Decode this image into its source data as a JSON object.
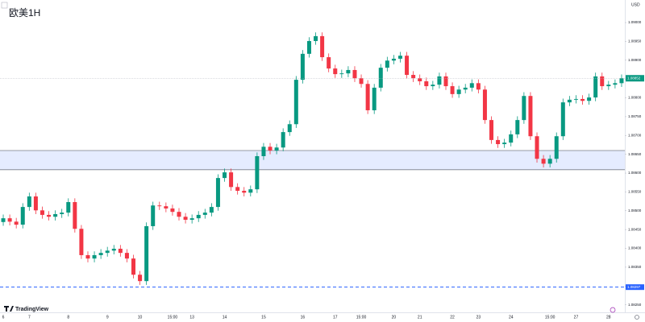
{
  "chart_data": {
    "type": "candlestick",
    "title": "欧美1H",
    "currency": "USD",
    "brand": "TradingView",
    "up_color": "#089981",
    "down_color": "#f23645",
    "categories": [
      "6",
      null,
      null,
      null,
      "7",
      null,
      null,
      null,
      null,
      null,
      "8",
      null,
      null,
      null,
      null,
      null,
      "9",
      null,
      null,
      null,
      null,
      "10",
      null,
      null,
      null,
      null,
      "15:00",
      null,
      null,
      "13",
      null,
      null,
      null,
      null,
      "14",
      null,
      null,
      null,
      null,
      null,
      "15",
      null,
      null,
      null,
      null,
      null,
      "16",
      null,
      null,
      null,
      null,
      "17",
      null,
      null,
      null,
      "15:00",
      null,
      null,
      null,
      null,
      "20",
      null,
      null,
      null,
      "21",
      null,
      null,
      null,
      null,
      "22",
      null,
      null,
      null,
      "23",
      null,
      null,
      null,
      null,
      "24",
      null,
      null,
      null,
      null,
      null,
      "15:00",
      null,
      null,
      null,
      "27",
      null,
      null,
      null,
      null,
      "28",
      null,
      null
    ],
    "open": [
      1.0847,
      1.0848,
      1.08471,
      1.08463,
      1.0851,
      1.08538,
      1.08501,
      1.08489,
      1.08484,
      1.08491,
      1.08495,
      1.08523,
      1.08452,
      1.08382,
      1.08373,
      1.08382,
      1.08388,
      1.08394,
      1.08399,
      1.08388,
      1.08373,
      1.0833,
      1.08313,
      1.08459,
      1.08514,
      1.08512,
      1.08506,
      1.08497,
      1.08484,
      1.08476,
      1.0848,
      1.08489,
      1.08495,
      1.0851,
      1.08587,
      1.08602,
      1.08563,
      1.08553,
      1.08548,
      1.08557,
      1.08645,
      1.0867,
      1.0866,
      1.08668,
      1.08709,
      1.0873,
      1.08848,
      1.08917,
      1.08951,
      1.08964,
      1.08908,
      1.08878,
      1.08863,
      1.08865,
      1.08874,
      1.08852,
      1.08837,
      1.08767,
      1.08827,
      1.0888,
      1.08899,
      1.08904,
      1.08912,
      1.08861,
      1.08852,
      1.08844,
      1.08831,
      1.08835,
      1.08857,
      1.08831,
      1.0881,
      1.08822,
      1.08827,
      1.08839,
      1.08822,
      1.08741,
      1.08688,
      1.08677,
      1.08681,
      1.08703,
      1.08741,
      1.08805,
      1.08698,
      1.08638,
      1.08625,
      1.08638,
      1.08698,
      1.08788,
      1.08795,
      1.08797,
      1.08792,
      1.08801,
      1.08857,
      1.08831,
      1.08835,
      1.08839
    ],
    "high": [
      1.0849,
      1.0849,
      1.08481,
      1.0852,
      1.08548,
      1.08548,
      1.08511,
      1.08499,
      1.08501,
      1.08505,
      1.08533,
      1.08533,
      1.08462,
      1.08392,
      1.08392,
      1.08398,
      1.08404,
      1.08409,
      1.08409,
      1.08398,
      1.08383,
      1.0834,
      1.08469,
      1.08524,
      1.08524,
      1.08522,
      1.08516,
      1.08507,
      1.08494,
      1.0849,
      1.08499,
      1.08505,
      1.0852,
      1.08597,
      1.08612,
      1.08612,
      1.08573,
      1.08563,
      1.08567,
      1.08655,
      1.0868,
      1.0868,
      1.08678,
      1.08719,
      1.0874,
      1.08858,
      1.08927,
      1.08961,
      1.08974,
      1.08974,
      1.08918,
      1.08888,
      1.08875,
      1.08884,
      1.08884,
      1.08862,
      1.08847,
      1.08837,
      1.0889,
      1.08909,
      1.08914,
      1.08922,
      1.08922,
      1.08871,
      1.08862,
      1.08854,
      1.08845,
      1.08867,
      1.08867,
      1.08841,
      1.08832,
      1.08837,
      1.08849,
      1.08849,
      1.08832,
      1.08751,
      1.08698,
      1.08691,
      1.08713,
      1.08751,
      1.08815,
      1.08815,
      1.08708,
      1.08648,
      1.08648,
      1.08708,
      1.08798,
      1.08805,
      1.08807,
      1.08807,
      1.08811,
      1.08867,
      1.08867,
      1.08845,
      1.08849,
      1.08862
    ],
    "low": [
      1.0846,
      1.08461,
      1.08453,
      1.08453,
      1.085,
      1.08491,
      1.08479,
      1.08474,
      1.08474,
      1.08481,
      1.08485,
      1.08442,
      1.08372,
      1.08363,
      1.08363,
      1.08372,
      1.08378,
      1.08384,
      1.08378,
      1.08363,
      1.0832,
      1.08303,
      1.08303,
      1.08449,
      1.08502,
      1.08496,
      1.08487,
      1.08474,
      1.08466,
      1.08466,
      1.0847,
      1.08479,
      1.08485,
      1.085,
      1.08577,
      1.08553,
      1.08543,
      1.08538,
      1.08538,
      1.08547,
      1.08635,
      1.0865,
      1.0865,
      1.08658,
      1.08699,
      1.0872,
      1.08838,
      1.08907,
      1.08941,
      1.08898,
      1.08868,
      1.08853,
      1.08853,
      1.08855,
      1.08842,
      1.08827,
      1.08757,
      1.08757,
      1.08817,
      1.0887,
      1.08889,
      1.08894,
      1.08851,
      1.08842,
      1.08834,
      1.08821,
      1.08821,
      1.08825,
      1.08821,
      1.088,
      1.088,
      1.08812,
      1.08817,
      1.08812,
      1.08731,
      1.08678,
      1.08667,
      1.08667,
      1.08671,
      1.08693,
      1.08731,
      1.08688,
      1.08628,
      1.08615,
      1.08615,
      1.08628,
      1.08688,
      1.08778,
      1.08785,
      1.08782,
      1.08782,
      1.08791,
      1.08821,
      1.08821,
      1.08825,
      1.08829
    ],
    "close": [
      1.0848,
      1.08471,
      1.08463,
      1.0851,
      1.08538,
      1.08501,
      1.08489,
      1.08484,
      1.08491,
      1.08495,
      1.08523,
      1.08452,
      1.08382,
      1.08373,
      1.08382,
      1.08388,
      1.08394,
      1.08399,
      1.08388,
      1.08373,
      1.0833,
      1.08313,
      1.08459,
      1.08514,
      1.08512,
      1.08506,
      1.08497,
      1.08484,
      1.08476,
      1.0848,
      1.08489,
      1.08495,
      1.0851,
      1.08587,
      1.08602,
      1.08563,
      1.08553,
      1.08548,
      1.08557,
      1.08645,
      1.0867,
      1.0866,
      1.08668,
      1.08709,
      1.0873,
      1.08848,
      1.08917,
      1.08951,
      1.08964,
      1.08908,
      1.08878,
      1.08863,
      1.08865,
      1.08874,
      1.08852,
      1.08837,
      1.08767,
      1.08827,
      1.0888,
      1.08899,
      1.08904,
      1.08912,
      1.08861,
      1.08852,
      1.08844,
      1.08831,
      1.08835,
      1.08857,
      1.08831,
      1.0881,
      1.08822,
      1.08827,
      1.08839,
      1.08822,
      1.08741,
      1.08688,
      1.08677,
      1.08681,
      1.08703,
      1.08741,
      1.08805,
      1.08698,
      1.08638,
      1.08625,
      1.08638,
      1.08698,
      1.08788,
      1.08795,
      1.08797,
      1.08792,
      1.08801,
      1.08857,
      1.08831,
      1.08835,
      1.08839,
      1.08852
    ],
    "zone": [
      1.08609,
      1.0866
    ],
    "hline": 1.08297,
    "ylim": [
      1.0823,
      1.0906
    ],
    "yticks": [
      {
        "value": 1.0825,
        "label": "1.08250"
      },
      {
        "value": 1.083,
        "label": "1.08300"
      },
      {
        "value": 1.0835,
        "label": "1.08350"
      },
      {
        "value": 1.084,
        "label": "1.08400"
      },
      {
        "value": 1.0845,
        "label": "1.08450"
      },
      {
        "value": 1.085,
        "label": "1.08500"
      },
      {
        "value": 1.0855,
        "label": "1.08550"
      },
      {
        "value": 1.086,
        "label": "1.08600"
      },
      {
        "value": 1.0865,
        "label": "1.08650"
      },
      {
        "value": 1.087,
        "label": "1.08700"
      },
      {
        "value": 1.0875,
        "label": "1.08750"
      },
      {
        "value": 1.088,
        "label": "1.08800"
      },
      {
        "value": 1.0885,
        "label": "1.08850"
      },
      {
        "value": 1.089,
        "label": "1.08900"
      },
      {
        "value": 1.0895,
        "label": "1.08950"
      },
      {
        "value": 1.09,
        "label": "1.09000"
      }
    ]
  }
}
